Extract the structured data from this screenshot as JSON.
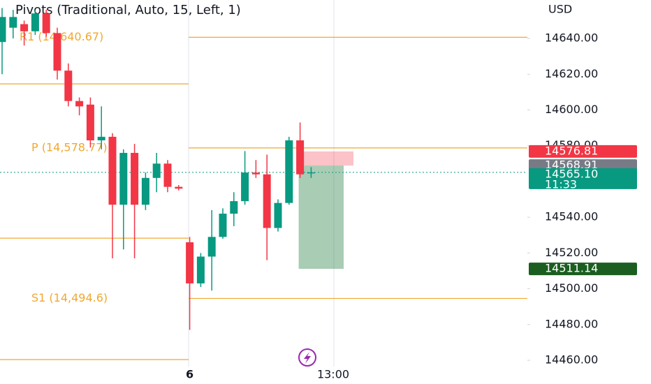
{
  "chart_data": {
    "type": "candlestick",
    "title": "Pivots (Traditional, Auto, 15, Left, 1)",
    "currency": "USD",
    "categories": [
      null,
      null,
      null,
      null,
      null,
      null,
      null,
      null,
      null,
      null,
      null,
      null,
      null,
      null,
      null,
      null,
      null,
      "6",
      null,
      null,
      null,
      null,
      null,
      null,
      null,
      null,
      null,
      null,
      null,
      null,
      "13:00"
    ],
    "open": [
      14638,
      14646,
      14648,
      14644,
      14654,
      14643,
      14622,
      14605,
      14603,
      14583,
      14585,
      14547,
      14576,
      14547,
      14562,
      14570,
      14557,
      14526,
      14503,
      14518,
      14529,
      14542,
      14549,
      14565,
      14564,
      14534,
      14548,
      14583,
      14565,
      null,
      null
    ],
    "high": [
      14657,
      14656,
      14650,
      14656,
      14656,
      14646,
      14626,
      14607,
      14607,
      14602,
      14587,
      14578,
      14581,
      14565,
      14576,
      14572,
      14558,
      14529,
      14520,
      14544,
      14545,
      14554,
      14577,
      14572,
      14575,
      14550,
      14585,
      14593,
      14568,
      null,
      null
    ],
    "low": [
      14620,
      14640,
      14636,
      14642,
      14641,
      14617,
      14602,
      14597,
      14579,
      14578,
      14517,
      14522,
      14517,
      14544,
      14554,
      14554,
      14555,
      14477,
      14501,
      14499,
      14528,
      14535,
      14547,
      14562,
      14516,
      14532,
      14547,
      14562,
      14562,
      null,
      null
    ],
    "close": [
      14652,
      14652,
      14644,
      14654,
      14643,
      14622,
      14605,
      14602,
      14583,
      14585,
      14547,
      14576,
      14547,
      14562,
      14570,
      14557,
      14556,
      14503,
      14518,
      14529,
      14542,
      14549,
      14565,
      14564,
      14534,
      14548,
      14583,
      14564,
      14565.1,
      null,
      null
    ],
    "up_color": "#089981",
    "down_color": "#f23645",
    "level_color": "#f0a830",
    "levels": [
      {
        "value": 14640.67,
        "label": "R1 (14,640.67)"
      },
      {
        "value": 14578.77,
        "label": "P (14,578.77)"
      },
      {
        "value": 14494.6,
        "label": "S1 (14,494.6)"
      }
    ],
    "previous_levels": [
      14614.6,
      14528.3,
      14460.4
    ],
    "position": {
      "stop": 14576.81,
      "entry": 14568.91,
      "target": 14511.14
    },
    "last_price": {
      "value": 14565.1,
      "label": "14565.10"
    },
    "countdown": "11:33",
    "ylim": [
      14456.5,
      14661.5
    ],
    "yticks": [
      {
        "value": 14640,
        "label": "14640.00"
      },
      {
        "value": 14620,
        "label": "14620.00"
      },
      {
        "value": 14600,
        "label": "14600.00"
      },
      {
        "value": 14580,
        "label": "14580.00"
      },
      {
        "value": 14540,
        "label": "14540.00"
      },
      {
        "value": 14520,
        "label": "14520.00"
      },
      {
        "value": 14500,
        "label": "14500.00"
      },
      {
        "value": 14480,
        "label": "14480.00"
      },
      {
        "value": 14460,
        "label": "14460.00"
      }
    ]
  }
}
